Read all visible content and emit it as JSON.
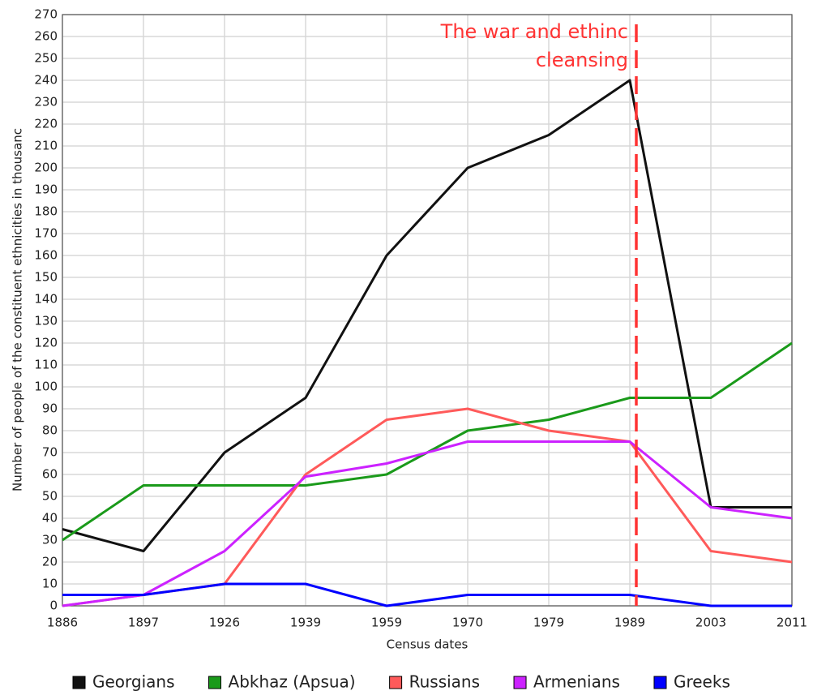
{
  "chart_data": {
    "type": "line",
    "ylabel": "Number of people of the constituent ethnicities in thousanc",
    "xlabel": "Census dates",
    "categories": [
      "1886",
      "1897",
      "1926",
      "1939",
      "1959",
      "1970",
      "1979",
      "1989",
      "2003",
      "2011"
    ],
    "series": [
      {
        "name": "Georgians",
        "color": "#111111",
        "values": [
          35,
          25,
          70,
          95,
          160,
          200,
          215,
          240,
          45,
          45
        ]
      },
      {
        "name": "Abkhaz (Apsua)",
        "color": "#1a9a1a",
        "values": [
          30,
          55,
          55,
          55,
          60,
          80,
          85,
          95,
          95,
          120
        ]
      },
      {
        "name": "Russians",
        "color": "#ff5a5a",
        "values": [
          0,
          5,
          10,
          60,
          85,
          90,
          80,
          75,
          25,
          20
        ]
      },
      {
        "name": "Armenians",
        "color": "#cc22ff",
        "values": [
          0,
          5,
          25,
          59,
          65,
          75,
          75,
          75,
          45,
          40
        ]
      },
      {
        "name": "Greeks",
        "color": "#0000ff",
        "values": [
          5,
          5,
          10,
          10,
          0,
          5,
          5,
          5,
          0,
          0
        ]
      }
    ],
    "annotation": {
      "lines": [
        "The war and ethinc",
        "cleansing"
      ],
      "color": "#ff3333"
    },
    "ylim": [
      0,
      270
    ],
    "yticks": [
      0,
      10,
      20,
      30,
      40,
      50,
      60,
      70,
      80,
      90,
      100,
      110,
      120,
      130,
      140,
      150,
      160,
      170,
      180,
      190,
      200,
      210,
      220,
      230,
      240,
      250,
      260,
      270
    ],
    "grid": true,
    "legend": "bottom"
  }
}
